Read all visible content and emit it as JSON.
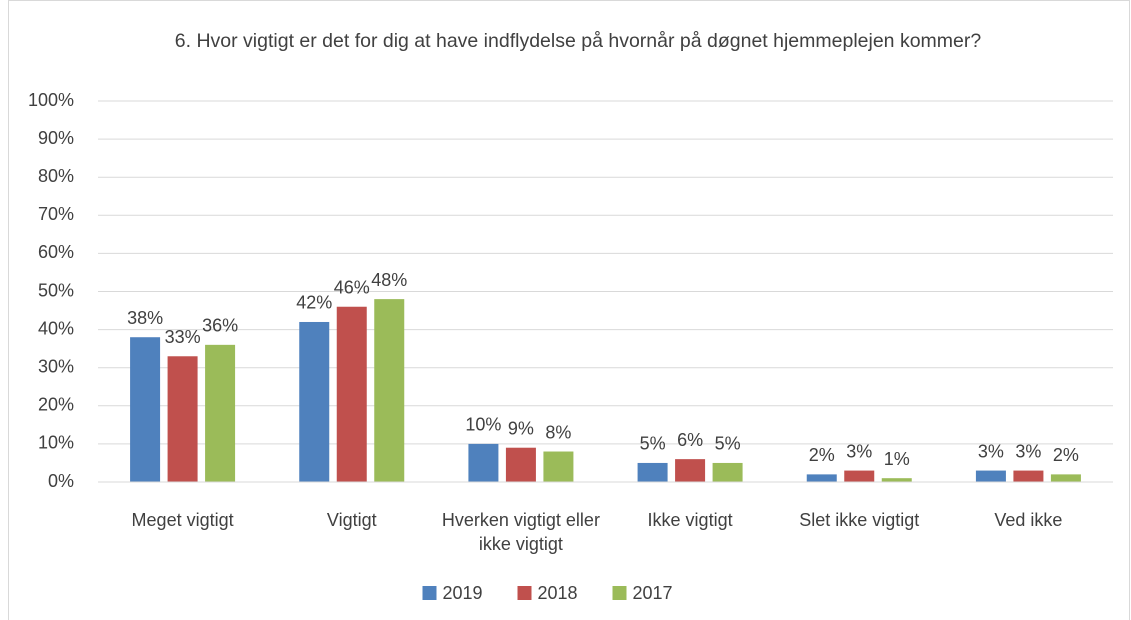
{
  "chart_data": {
    "type": "bar",
    "title": "6. Hvor vigtigt er det for dig at have indflydelse på hvornår på døgnet hjemmeplejen kommer?",
    "categories": [
      "Meget vigtigt",
      "Vigtigt",
      "Hverken vigtigt eller ikke vigtigt",
      "Ikke vigtigt",
      "Slet ikke vigtigt",
      "Ved ikke"
    ],
    "series": [
      {
        "name": "2019",
        "color": "#4f81bd",
        "values": [
          38,
          42,
          10,
          5,
          2,
          3
        ],
        "value_labels": [
          "38%",
          "42%",
          "10%",
          "5%",
          "2%",
          "3%"
        ]
      },
      {
        "name": "2018",
        "color": "#c0504d",
        "values": [
          33,
          46,
          9,
          6,
          3,
          3
        ],
        "value_labels": [
          "33%",
          "46%",
          "9%",
          "6%",
          "3%",
          "3%"
        ]
      },
      {
        "name": "2017",
        "color": "#9bbb59",
        "values": [
          36,
          48,
          8,
          5,
          1,
          2
        ],
        "value_labels": [
          "36%",
          "48%",
          "8%",
          "5%",
          "1%",
          "2%"
        ]
      }
    ],
    "ylim": [
      0,
      100
    ],
    "yticks": [
      {
        "value": 0,
        "label": "0%"
      },
      {
        "value": 10,
        "label": "10%"
      },
      {
        "value": 20,
        "label": "20%"
      },
      {
        "value": 30,
        "label": "30%"
      },
      {
        "value": 40,
        "label": "40%"
      },
      {
        "value": 50,
        "label": "50%"
      },
      {
        "value": 60,
        "label": "60%"
      },
      {
        "value": 70,
        "label": "70%"
      },
      {
        "value": 80,
        "label": "80%"
      },
      {
        "value": 90,
        "label": "90%"
      },
      {
        "value": 100,
        "label": "100%"
      }
    ],
    "grid": true,
    "legend": "bottom"
  }
}
